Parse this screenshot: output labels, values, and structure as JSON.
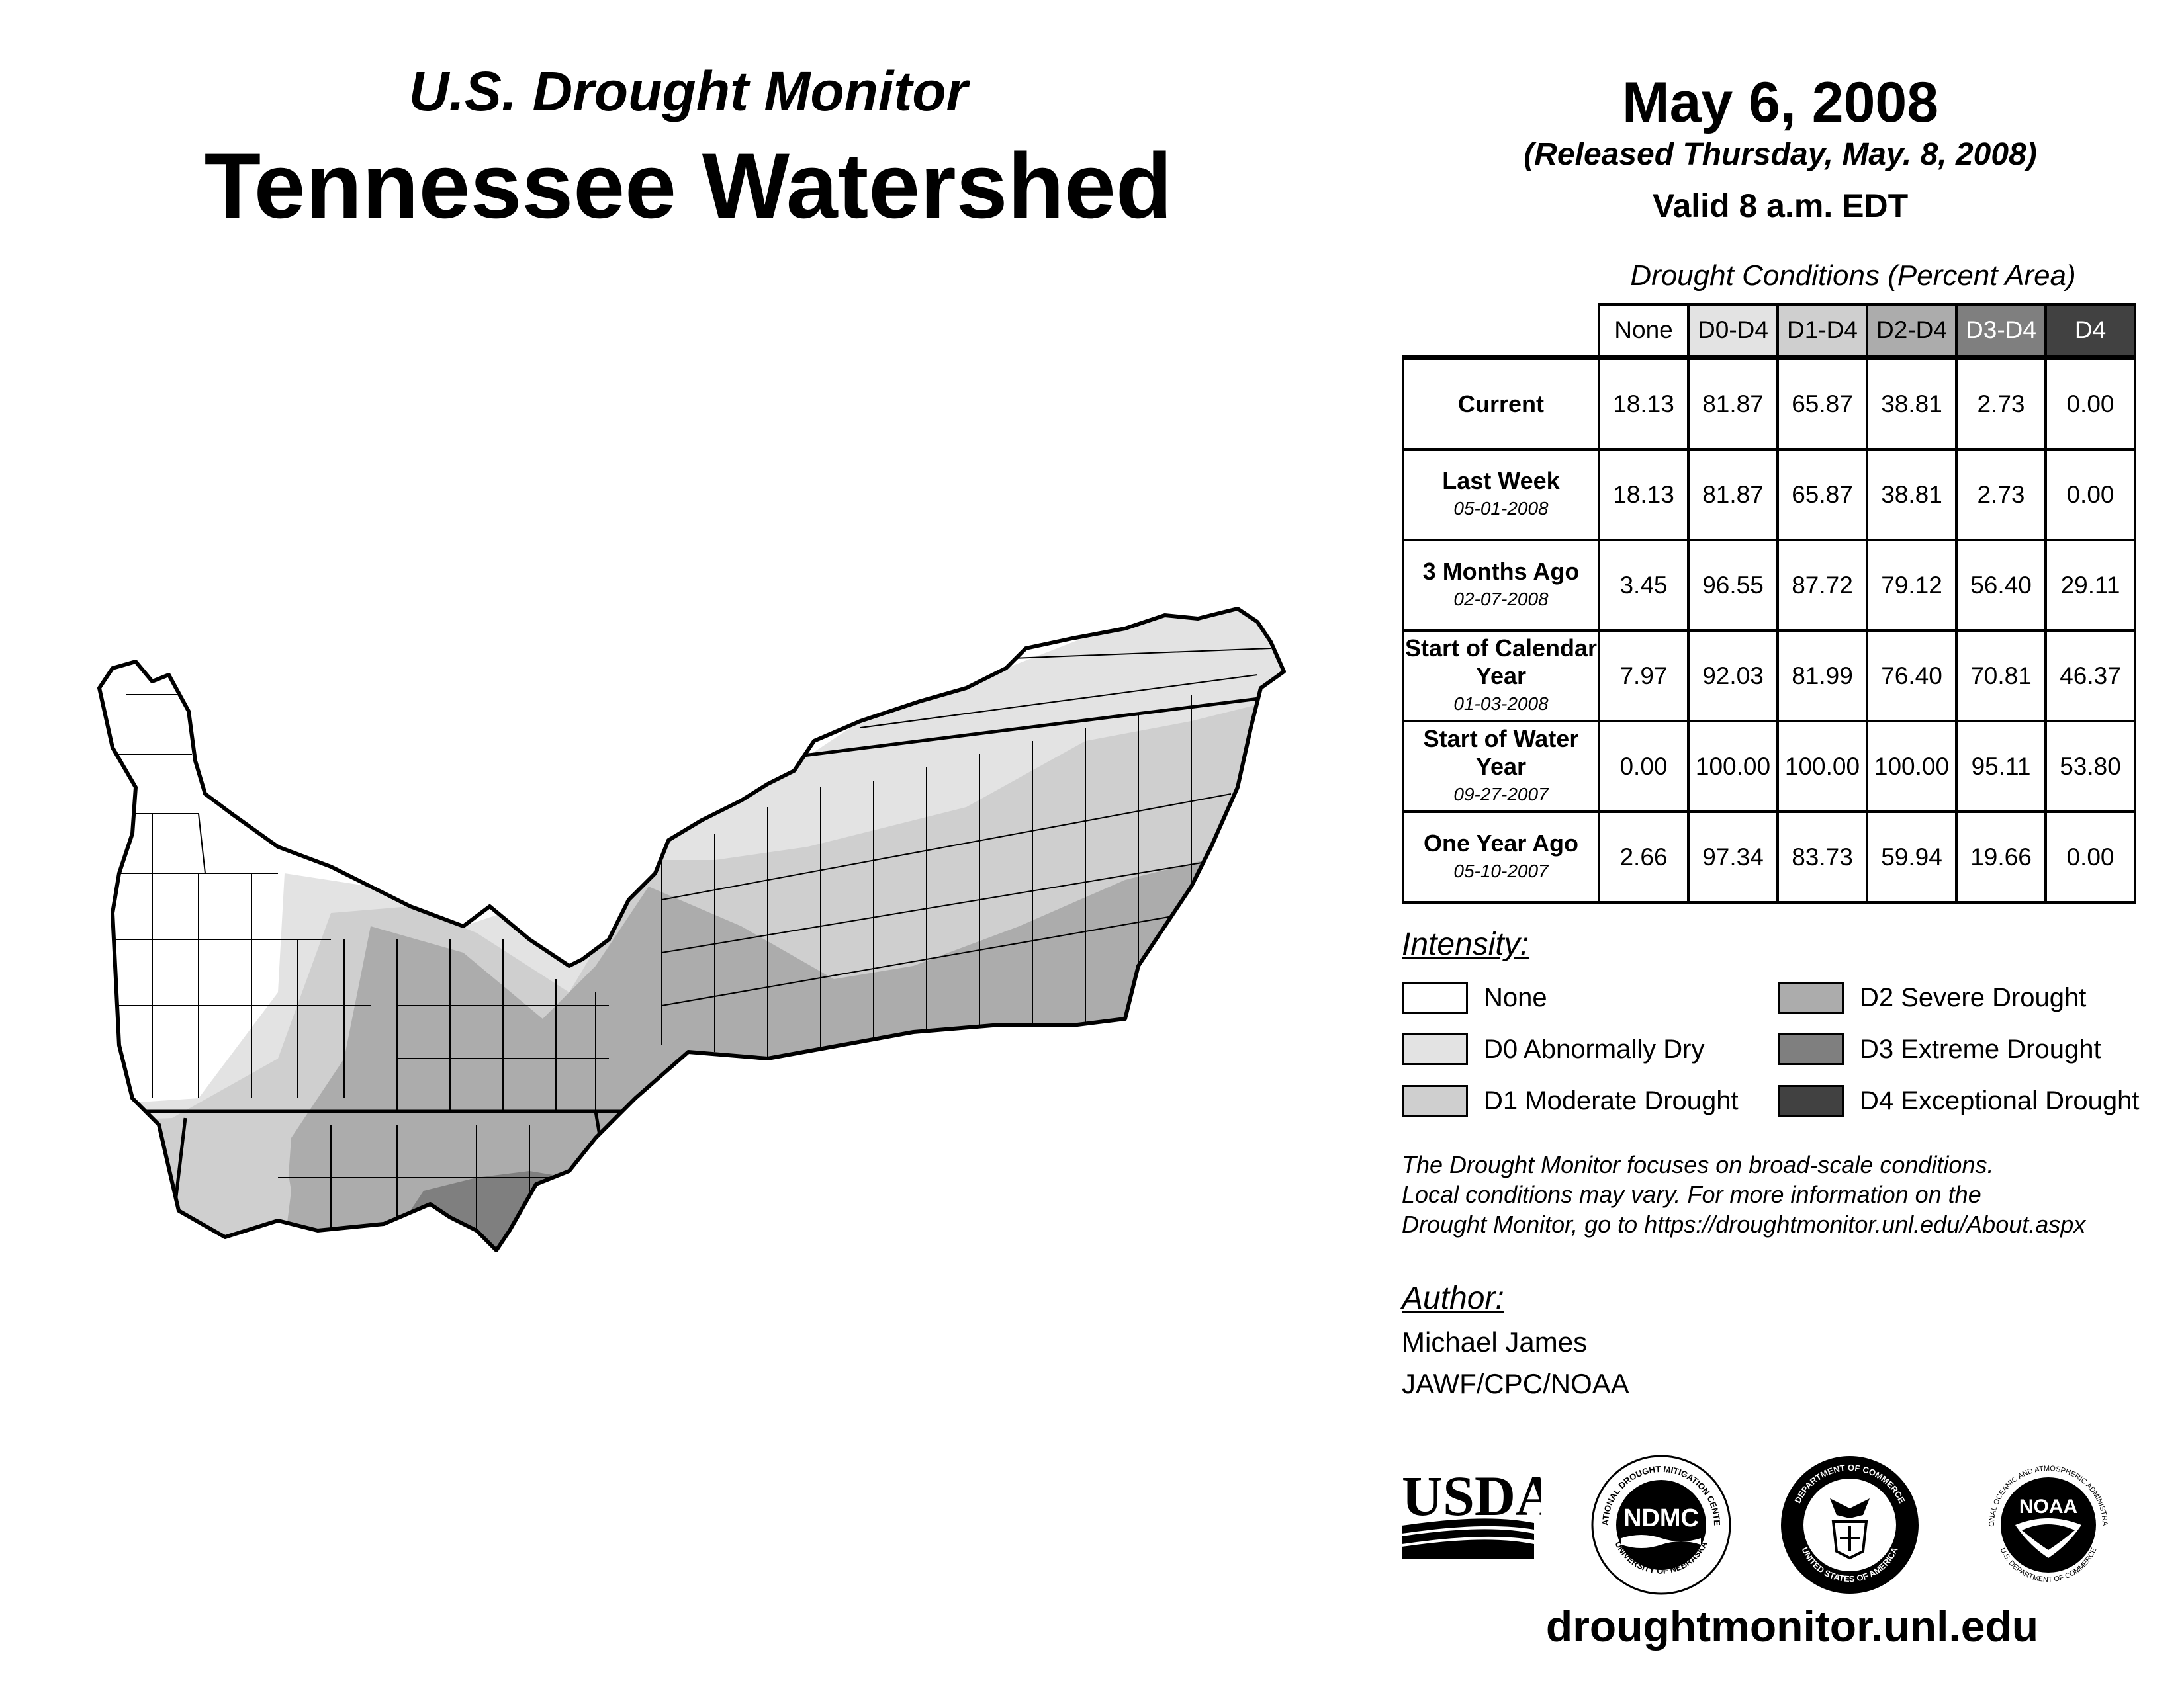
{
  "header": {
    "subtitle": "U.S. Drought Monitor",
    "title": "Tennessee Watershed",
    "date": "May 6, 2008",
    "released": "(Released Thursday, May. 8, 2008)",
    "valid": "Valid 8 a.m. EDT"
  },
  "table": {
    "caption": "Drought Conditions (Percent Area)",
    "columns": [
      "None",
      "D0-D4",
      "D1-D4",
      "D2-D4",
      "D3-D4",
      "D4"
    ],
    "rows": [
      {
        "label": "Current",
        "date": "",
        "values": [
          "18.13",
          "81.87",
          "65.87",
          "38.81",
          "2.73",
          "0.00"
        ]
      },
      {
        "label": "Last Week",
        "date": "05-01-2008",
        "values": [
          "18.13",
          "81.87",
          "65.87",
          "38.81",
          "2.73",
          "0.00"
        ]
      },
      {
        "label": "3 Months Ago",
        "date": "02-07-2008",
        "values": [
          "3.45",
          "96.55",
          "87.72",
          "79.12",
          "56.40",
          "29.11"
        ]
      },
      {
        "label": "Start of Calendar Year",
        "date": "01-03-2008",
        "values": [
          "7.97",
          "92.03",
          "81.99",
          "76.40",
          "70.81",
          "46.37"
        ]
      },
      {
        "label": "Start of Water Year",
        "date": "09-27-2007",
        "values": [
          "0.00",
          "100.00",
          "100.00",
          "100.00",
          "95.11",
          "53.80"
        ]
      },
      {
        "label": "One Year Ago",
        "date": "05-10-2007",
        "values": [
          "2.66",
          "97.34",
          "83.73",
          "59.94",
          "19.66",
          "0.00"
        ]
      }
    ]
  },
  "legend": {
    "heading": "Intensity:",
    "items": [
      {
        "label": "None",
        "color": "#ffffff"
      },
      {
        "label": "D0 Abnormally Dry",
        "color": "#e3e3e3"
      },
      {
        "label": "D1 Moderate Drought",
        "color": "#cfcfcf"
      },
      {
        "label": "D2 Severe Drought",
        "color": "#acacac"
      },
      {
        "label": "D3 Extreme Drought",
        "color": "#7f7f7f"
      },
      {
        "label": "D4 Exceptional Drought",
        "color": "#414141"
      }
    ]
  },
  "note": {
    "line1": "The Drought Monitor focuses on broad-scale conditions.",
    "line2": "Local conditions may vary. For more information on the",
    "line3": "Drought Monitor, go to https://droughtmonitor.unl.edu/About.aspx"
  },
  "author": {
    "heading": "Author:",
    "name": "Michael James",
    "org": "JAWF/CPC/NOAA"
  },
  "logos": {
    "usda": "USDA",
    "ndmc": "NDMC",
    "ndmc_ring": "NATIONAL DROUGHT MITIGATION CENTER",
    "ndmc_ring_bottom": "UNIVERSITY OF NEBRASKA",
    "commerce_ring": "DEPARTMENT OF COMMERCE",
    "commerce_ring_bottom": "UNITED STATES OF AMERICA",
    "noaa": "NOAA",
    "noaa_ring": "NATIONAL OCEANIC AND ATMOSPHERIC ADMINISTRATION",
    "noaa_ring_bottom": "U.S. DEPARTMENT OF COMMERCE"
  },
  "site_url": "droughtmonitor.unl.edu"
}
